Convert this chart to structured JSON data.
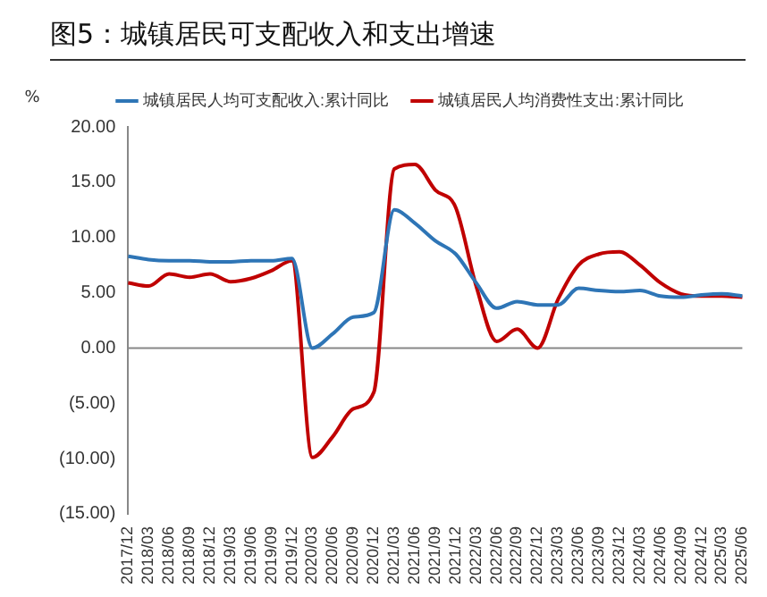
{
  "chart_data": {
    "type": "line",
    "title": "图5：城镇居民可支配收入和支出增速",
    "ylabel": "%",
    "categories": [
      "2017/12",
      "2018/03",
      "2018/06",
      "2018/09",
      "2018/12",
      "2019/03",
      "2019/06",
      "2019/09",
      "2019/12",
      "2020/03",
      "2020/06",
      "2020/09",
      "2020/12",
      "2021/03",
      "2021/06",
      "2021/09",
      "2021/12",
      "2022/03",
      "2022/06",
      "2022/09",
      "2022/12",
      "2023/03",
      "2023/06",
      "2023/09",
      "2023/12",
      "2024/03",
      "2024/06",
      "2024/09",
      "2024/12",
      "2025/03",
      "2025/06"
    ],
    "series": [
      {
        "name": "城镇居民人均可支配收入:累计同比",
        "color": "#2e75b6",
        "values": [
          8.3,
          8.0,
          7.9,
          7.9,
          7.8,
          7.8,
          7.9,
          7.9,
          8.1,
          0.0,
          1.3,
          2.8,
          3.2,
          12.5,
          11.3,
          9.7,
          8.5,
          5.9,
          3.6,
          4.2,
          3.9,
          3.9,
          5.4,
          5.2,
          5.1,
          5.2,
          4.7,
          4.6,
          4.8,
          4.9,
          4.7
        ]
      },
      {
        "name": "城镇居民人均消费性支出:累计同比",
        "color": "#c00000",
        "values": [
          5.9,
          5.6,
          6.7,
          6.4,
          6.7,
          6.0,
          6.3,
          7.0,
          7.9,
          -9.9,
          -8.0,
          -5.5,
          -4.0,
          16.2,
          16.6,
          14.3,
          12.7,
          5.6,
          0.6,
          1.7,
          0.0,
          4.4,
          7.5,
          8.5,
          8.7,
          7.5,
          5.9,
          4.9,
          4.7,
          4.7,
          4.6
        ]
      }
    ],
    "ylim": [
      -15,
      20
    ],
    "yticks": [
      {
        "value": -15,
        "label": "(15.00)"
      },
      {
        "value": -10,
        "label": "(10.00)"
      },
      {
        "value": -5,
        "label": "(5.00)"
      },
      {
        "value": 0,
        "label": "0.00"
      },
      {
        "value": 5,
        "label": "5.00"
      },
      {
        "value": 10,
        "label": "10.00"
      },
      {
        "value": 15,
        "label": "15.00"
      },
      {
        "value": 20,
        "label": "20.00"
      }
    ],
    "ref_lines": [
      {
        "axis": "y",
        "value": 0,
        "color": "#888888"
      }
    ],
    "grid": false,
    "legend": "top",
    "marker": "none",
    "line_style": "solid"
  }
}
